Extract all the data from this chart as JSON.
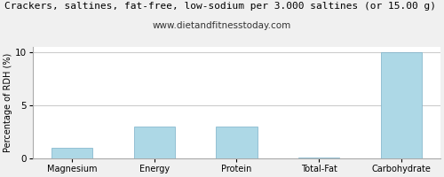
{
  "title": "Crackers, saltines, fat-free, low-sodium per 3.000 saltines (or 15.00 g)",
  "subtitle": "www.dietandfitnesstoday.com",
  "categories": [
    "Magnesium",
    "Energy",
    "Protein",
    "Total-Fat",
    "Carbohydrate"
  ],
  "values": [
    1.0,
    3.0,
    3.0,
    0.05,
    10.0
  ],
  "bar_color": "#add8e6",
  "bar_edgecolor": "#7ab0c8",
  "ylabel": "Percentage of RDH (%)",
  "ylim": [
    0,
    10.5
  ],
  "yticks": [
    0,
    5,
    10
  ],
  "title_fontsize": 8.0,
  "subtitle_fontsize": 7.5,
  "ylabel_fontsize": 7.0,
  "xlabel_fontsize": 7.0,
  "tick_fontsize": 7.5,
  "background_color": "#f0f0f0",
  "plot_bg_color": "#ffffff",
  "grid_color": "#cccccc",
  "border_color": "#aaaaaa"
}
